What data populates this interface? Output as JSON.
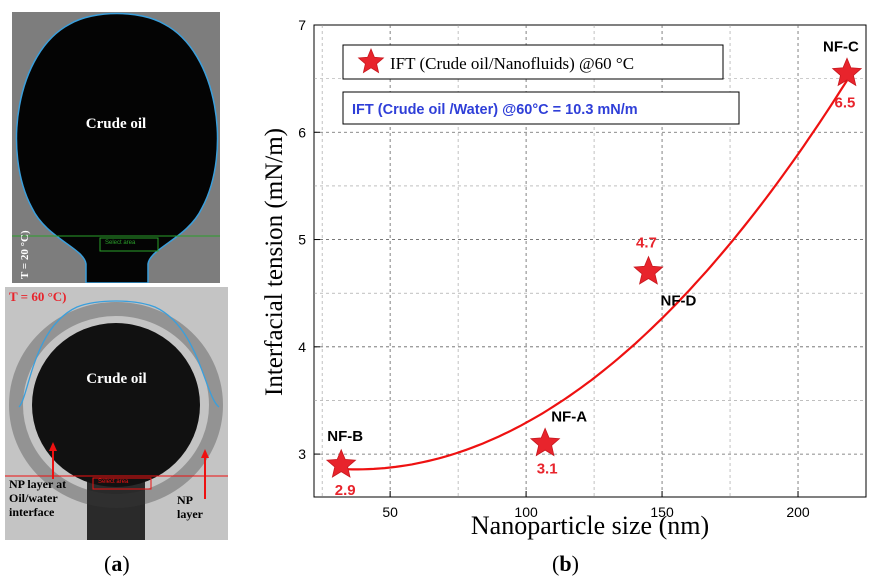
{
  "panel_a": {
    "top_photo": {
      "drop_label": "Crude oil",
      "temperature_label": "T = 20 °C)",
      "select_area_label": "Select area"
    },
    "bottom_photo": {
      "drop_label": "Crude oil",
      "temperature_label": "T = 60 °C)",
      "select_area_label": "Select area",
      "left_annotation": [
        "NP layer at",
        "Oil/water",
        "interface"
      ],
      "right_annotation": [
        "NP",
        "layer"
      ]
    },
    "caption_open": "(",
    "caption_letter": "a",
    "caption_close": ")"
  },
  "panel_b": {
    "caption_open": "(",
    "caption_letter": "b",
    "caption_close": ")"
  },
  "colors": {
    "accent_red": "#e8242c",
    "fit_line": "#ee1111",
    "annotation_blue": "#2f3fd8",
    "drop_outline": "#2e8fd0",
    "select_green": "#2aa02a"
  },
  "chart_data": {
    "type": "scatter",
    "xlabel": "Nanoparticle size (nm)",
    "ylabel": "Interfacial tension (mN/m)",
    "xlim": [
      22,
      225
    ],
    "ylim": [
      2.6,
      7
    ],
    "xticks": [
      50,
      100,
      150,
      200
    ],
    "yticks": [
      3,
      4,
      5,
      6,
      7
    ],
    "grid": true,
    "legend": {
      "position": "top-left",
      "series_label": "IFT (Crude oil/Nanofluids) @60 °C",
      "note": "IFT (Crude oil /Water) @60°C = 10.3 mN/m"
    },
    "points": [
      {
        "name": "NF-B",
        "x": 32,
        "y": 2.9,
        "value_label": "2.9"
      },
      {
        "name": "NF-A",
        "x": 107,
        "y": 3.1,
        "value_label": "3.1"
      },
      {
        "name": "NF-D",
        "x": 145,
        "y": 4.7,
        "value_label": "4.7"
      },
      {
        "name": "NF-C",
        "x": 218,
        "y": 6.55,
        "value_label": "6.5"
      }
    ],
    "fit_line": {
      "type": "quadratic",
      "x": [
        32,
        60,
        90,
        120,
        150,
        180,
        218
      ],
      "y": [
        2.82,
        2.93,
        3.22,
        3.65,
        4.25,
        5.0,
        6.55
      ]
    }
  }
}
